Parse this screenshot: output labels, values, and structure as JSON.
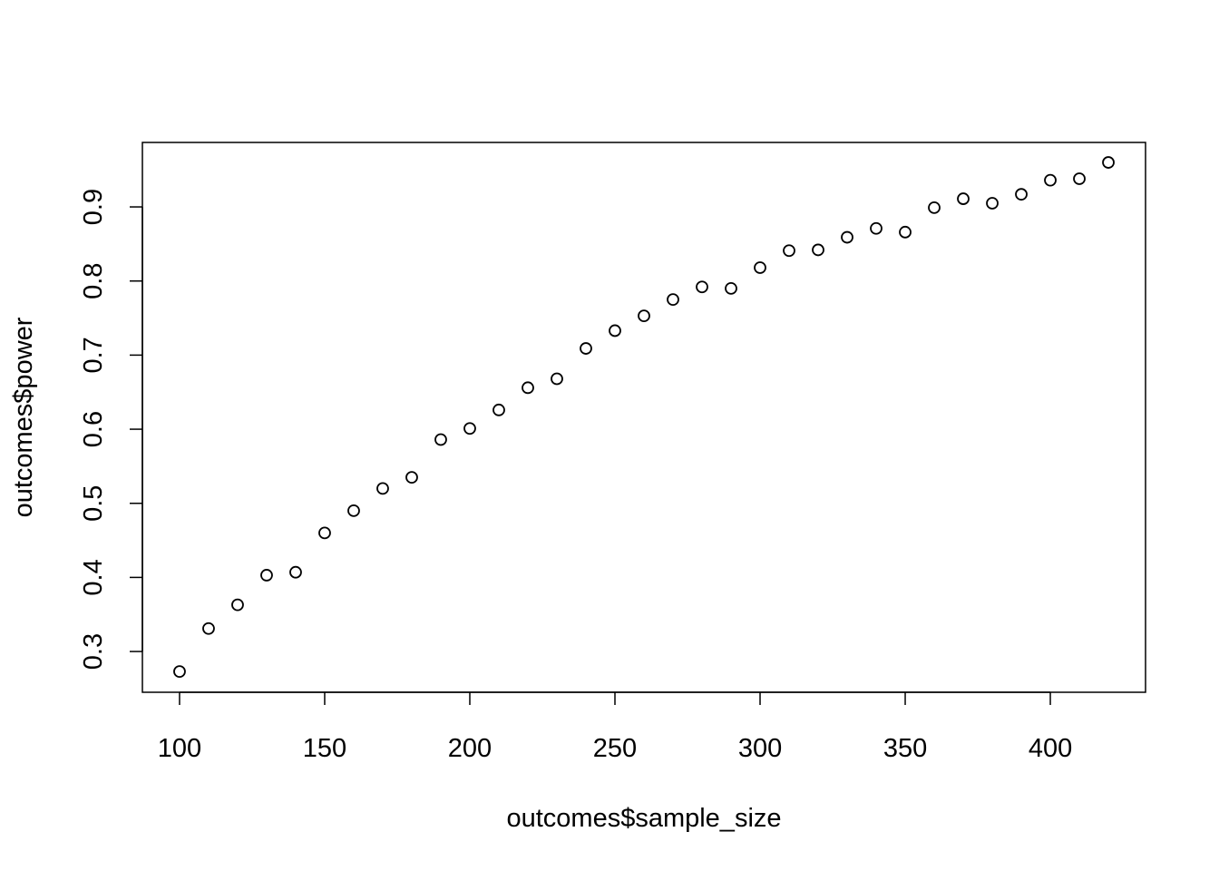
{
  "chart_data": {
    "type": "scatter",
    "title": "",
    "xlabel": "outcomes$sample_size",
    "ylabel": "outcomes$power",
    "xlim": [
      87.2,
      432.8
    ],
    "ylim": [
      0.245,
      0.987
    ],
    "x_ticks": [
      100,
      150,
      200,
      250,
      300,
      350,
      400
    ],
    "y_ticks": [
      0.3,
      0.4,
      0.5,
      0.6,
      0.7,
      0.8,
      0.9
    ],
    "grid": false,
    "legend": "none",
    "marker": "open-circle",
    "color": "#000000",
    "x": [
      100,
      110,
      120,
      130,
      140,
      150,
      160,
      170,
      180,
      190,
      200,
      210,
      220,
      230,
      240,
      250,
      260,
      270,
      280,
      290,
      300,
      310,
      320,
      330,
      340,
      350,
      360,
      370,
      380,
      390,
      400,
      410,
      420
    ],
    "y": [
      0.273,
      0.331,
      0.363,
      0.403,
      0.407,
      0.46,
      0.49,
      0.52,
      0.535,
      0.586,
      0.601,
      0.626,
      0.656,
      0.668,
      0.709,
      0.733,
      0.753,
      0.775,
      0.792,
      0.79,
      0.818,
      0.841,
      0.842,
      0.859,
      0.871,
      0.866,
      0.899,
      0.911,
      0.905,
      0.917,
      0.936,
      0.938,
      0.96
    ]
  }
}
